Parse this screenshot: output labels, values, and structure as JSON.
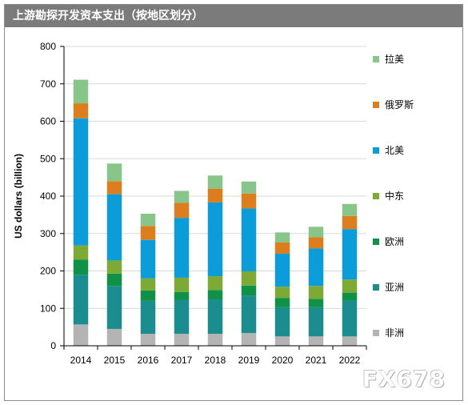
{
  "title": "上游勘探开发资本支出（按地区划分）",
  "watermark": "FX678",
  "chart_data": {
    "type": "bar",
    "stacked": true,
    "categories": [
      "2014",
      "2015",
      "2016",
      "2017",
      "2018",
      "2019",
      "2020",
      "2021",
      "2022"
    ],
    "ylabel": "US dollars (billion)",
    "xlabel": "",
    "ylim": [
      0,
      800
    ],
    "yticks": [
      0,
      100,
      200,
      300,
      400,
      500,
      600,
      700,
      800
    ],
    "grid": true,
    "legend_position": "right",
    "series": [
      {
        "name": "非洲",
        "color": "#b4b4b4",
        "values": [
          57,
          45,
          32,
          32,
          32,
          34,
          25,
          25,
          25
        ]
      },
      {
        "name": "亚洲",
        "color": "#1c8d8f",
        "values": [
          133,
          115,
          88,
          90,
          92,
          100,
          78,
          78,
          95
        ]
      },
      {
        "name": "欧洲",
        "color": "#109148",
        "values": [
          40,
          33,
          28,
          22,
          25,
          27,
          25,
          22,
          22
        ]
      },
      {
        "name": "中东",
        "color": "#7daa34",
        "values": [
          38,
          35,
          32,
          38,
          37,
          38,
          30,
          35,
          35
        ]
      },
      {
        "name": "北美",
        "color": "#0b9dd9",
        "values": [
          340,
          177,
          103,
          160,
          197,
          168,
          88,
          100,
          135
        ]
      },
      {
        "name": "俄罗斯",
        "color": "#dd7e1e",
        "values": [
          40,
          35,
          37,
          40,
          37,
          40,
          30,
          30,
          35
        ]
      },
      {
        "name": "拉美",
        "color": "#87c688",
        "values": [
          63,
          47,
          33,
          32,
          35,
          32,
          27,
          28,
          32
        ]
      }
    ]
  }
}
